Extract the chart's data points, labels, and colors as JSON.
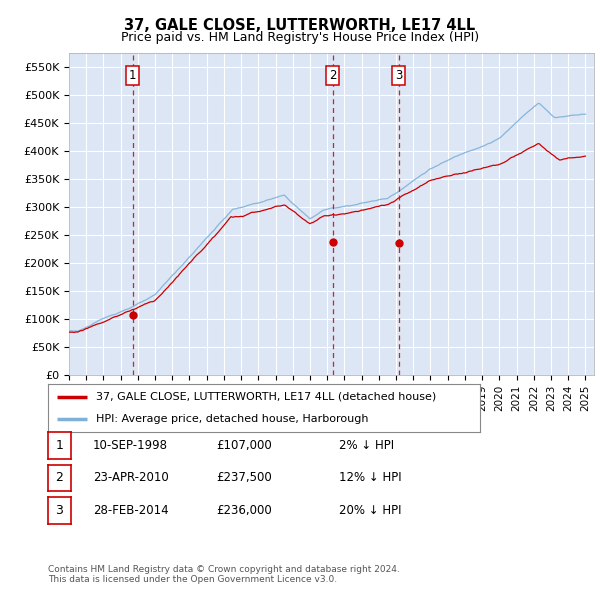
{
  "title": "37, GALE CLOSE, LUTTERWORTH, LE17 4LL",
  "subtitle": "Price paid vs. HM Land Registry's House Price Index (HPI)",
  "ylabel_ticks": [
    "£0",
    "£50K",
    "£100K",
    "£150K",
    "£200K",
    "£250K",
    "£300K",
    "£350K",
    "£400K",
    "£450K",
    "£500K",
    "£550K"
  ],
  "ylabel_values": [
    0,
    50000,
    100000,
    150000,
    200000,
    250000,
    300000,
    350000,
    400000,
    450000,
    500000,
    550000
  ],
  "ylim": [
    0,
    575000
  ],
  "xlim_start": 1995.0,
  "xlim_end": 2025.5,
  "background_color": "#dce6f5",
  "grid_color": "#ffffff",
  "hpi_color": "#7fb0d8",
  "price_color": "#cc0000",
  "transactions": [
    {
      "num": 1,
      "date": "10-SEP-1998",
      "price": 107000,
      "pct": "2%",
      "direction": "↓",
      "year_x": 1998.69
    },
    {
      "num": 2,
      "date": "23-APR-2010",
      "price": 237500,
      "pct": "12%",
      "direction": "↓",
      "year_x": 2010.31
    },
    {
      "num": 3,
      "date": "28-FEB-2014",
      "price": 236000,
      "pct": "20%",
      "direction": "↓",
      "year_x": 2014.16
    }
  ],
  "legend_label_price": "37, GALE CLOSE, LUTTERWORTH, LE17 4LL (detached house)",
  "legend_label_hpi": "HPI: Average price, detached house, Harborough",
  "footer_line1": "Contains HM Land Registry data © Crown copyright and database right 2024.",
  "footer_line2": "This data is licensed under the Open Government Licence v3.0.",
  "title_fontsize": 10.5,
  "subtitle_fontsize": 9,
  "tick_fontsize": 8,
  "legend_fontsize": 8,
  "footer_fontsize": 6.5
}
